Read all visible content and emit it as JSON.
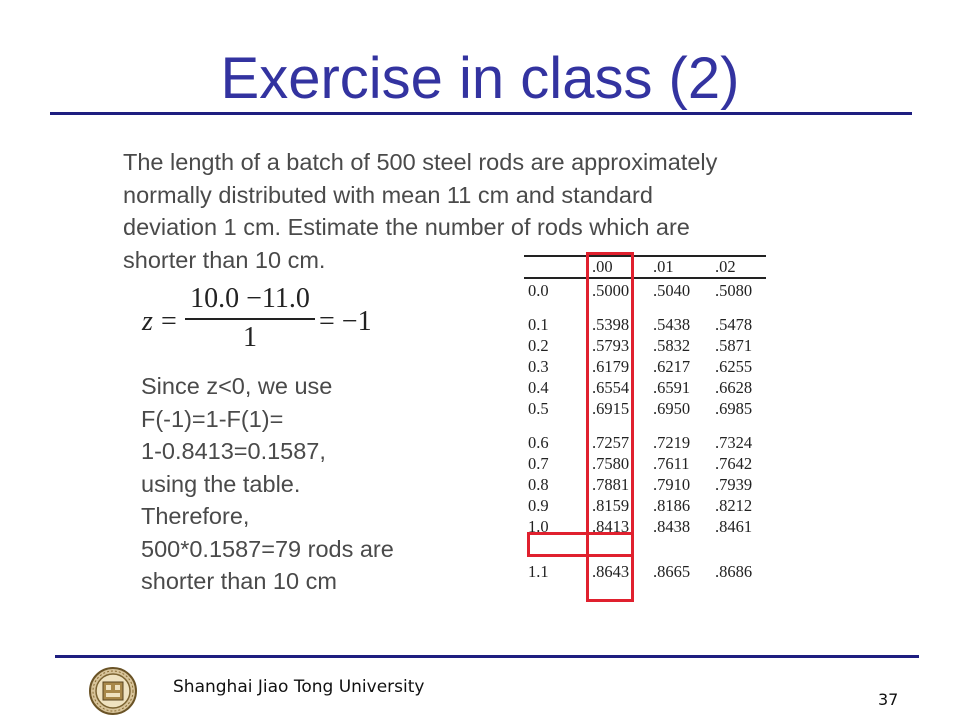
{
  "slide": {
    "title": "Exercise in class (2)",
    "problem_lines": [
      "The length of a batch of 500 steel rods are approximately",
      "normally distributed with mean 11 cm and standard",
      "deviation 1 cm. Estimate the number of rods which are",
      "shorter than 10 cm."
    ],
    "formula": {
      "lhs": "z",
      "eq": "=",
      "numerator": "10.0 −11.0",
      "denominator": "1",
      "rhs": "= −1"
    },
    "solution_lines": [
      "Since z<0, we use",
      "F(-1)=1-F(1)=",
      "1-0.8413=0.1587,",
      "using the table.",
      "Therefore,",
      "500*0.1587=79 rods are",
      "shorter than 10 cm"
    ]
  },
  "ztable": {
    "headers": [
      "",
      ".00",
      ".01",
      ".02"
    ],
    "rows": [
      [
        "0.0",
        ".5000",
        ".5040",
        ".5080"
      ],
      [
        "0.1",
        ".5398",
        ".5438",
        ".5478"
      ],
      [
        "0.2",
        ".5793",
        ".5832",
        ".5871"
      ],
      [
        "0.3",
        ".6179",
        ".6217",
        ".6255"
      ],
      [
        "0.4",
        ".6554",
        ".6591",
        ".6628"
      ],
      [
        "0.5",
        ".6915",
        ".6950",
        ".6985"
      ],
      [
        "0.6",
        ".7257",
        ".7219",
        ".7324"
      ],
      [
        "0.7",
        ".7580",
        ".7611",
        ".7642"
      ],
      [
        "0.8",
        ".7881",
        ".7910",
        ".7939"
      ],
      [
        "0.9",
        ".8159",
        ".8186",
        ".8212"
      ],
      [
        "1.0",
        ".8413",
        ".8438",
        ".8461"
      ],
      [
        "1.1",
        ".8643",
        ".8665",
        ".8686"
      ]
    ],
    "highlight_color": "#e0202e",
    "highlighted_column": ".00",
    "highlighted_row": "1.0"
  },
  "footer": {
    "institution": "Shanghai Jiao Tong University",
    "page_number": "37",
    "logo_icon": "university-seal-icon"
  },
  "colors": {
    "title": "#3333a0",
    "rule": "#1e1e80",
    "body_text": "#4a4a4a"
  }
}
